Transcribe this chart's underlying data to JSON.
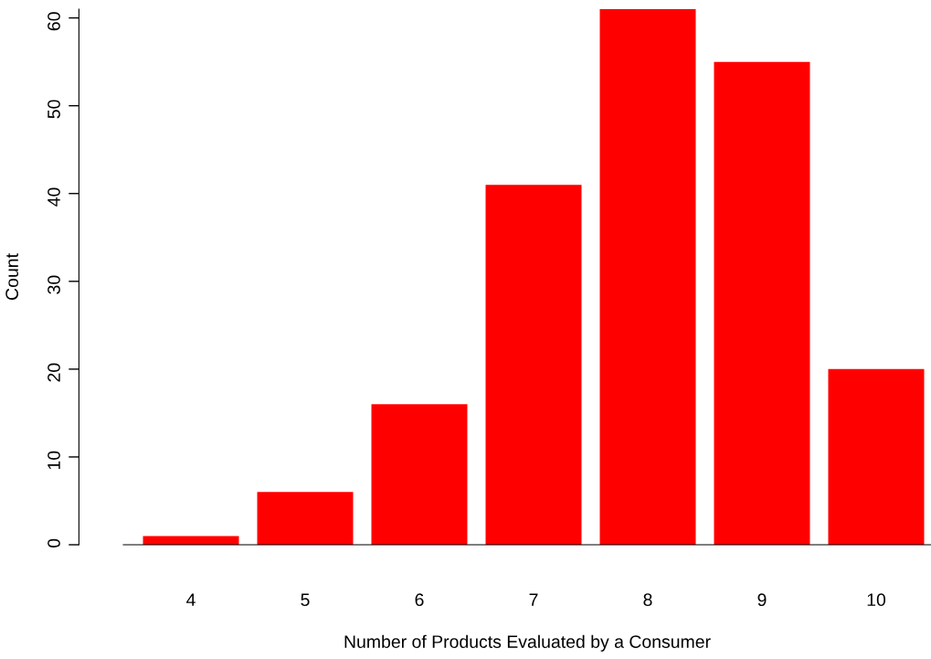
{
  "chart_data": {
    "type": "bar",
    "xlabel": "Number of Products Evaluated by a Consumer",
    "ylabel": "Count",
    "categories": [
      "4",
      "5",
      "6",
      "7",
      "8",
      "9",
      "10"
    ],
    "values": [
      1,
      6,
      16,
      41,
      61,
      55,
      20
    ],
    "color": "#ff0000",
    "ylim": [
      0,
      61
    ],
    "yticks": [
      0,
      10,
      20,
      30,
      40,
      50,
      60
    ]
  }
}
